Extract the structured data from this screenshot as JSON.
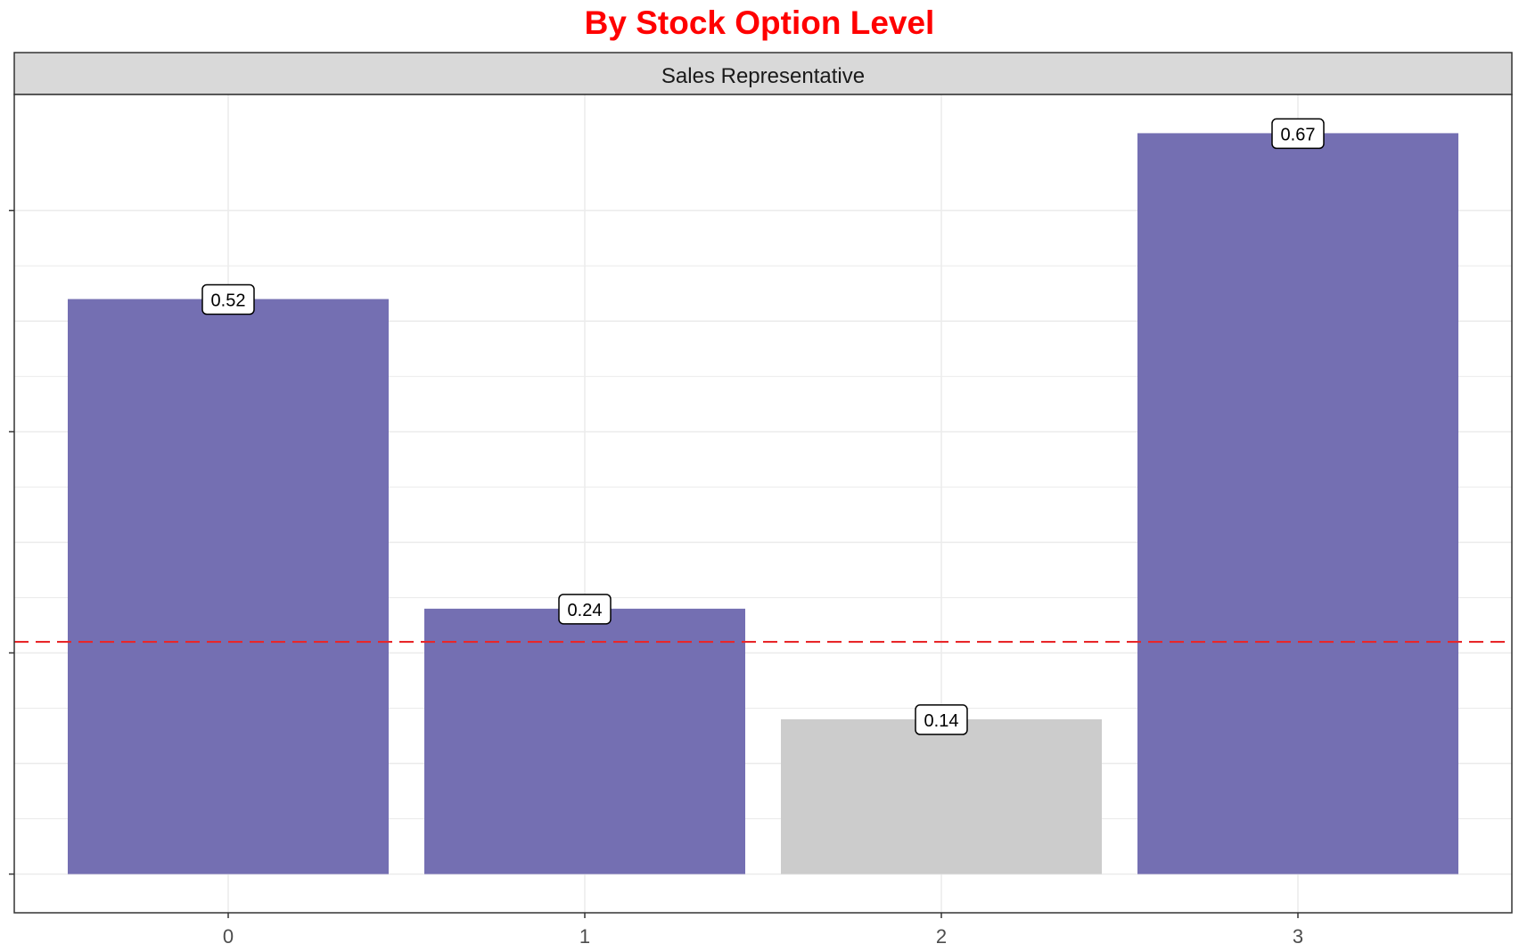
{
  "colors": {
    "title": "#ff0000",
    "bar_highlight": "#746fb2",
    "bar_muted": "#cccccc",
    "reference_line": "#e8272a",
    "strip_fill": "#d9d9d9",
    "grid": "#ebebeb",
    "panel_border": "#333333"
  },
  "chart_data": {
    "type": "bar",
    "title": "By Stock Option Level",
    "facet": "Sales Representative",
    "xlabel": "",
    "ylabel": "",
    "categories": [
      "0",
      "1",
      "2",
      "3"
    ],
    "values": [
      0.52,
      0.24,
      0.14,
      0.67
    ],
    "labels": [
      "0.52",
      "0.24",
      "0.14",
      "0.67"
    ],
    "bar_colors": [
      "#746fb2",
      "#746fb2",
      "#cccccc",
      "#746fb2"
    ],
    "reference_line": {
      "value": 0.21,
      "style": "dashed"
    },
    "ylim": [
      -0.035,
      0.705
    ],
    "y_gridlines": [
      0.0,
      0.1,
      0.2,
      0.3,
      0.4,
      0.5,
      0.6
    ],
    "grid": true,
    "legend": "none"
  }
}
